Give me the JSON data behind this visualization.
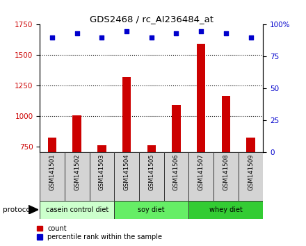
{
  "title": "GDS2468 / rc_AI236484_at",
  "samples": [
    "GSM141501",
    "GSM141502",
    "GSM141503",
    "GSM141504",
    "GSM141505",
    "GSM141506",
    "GSM141507",
    "GSM141508",
    "GSM141509"
  ],
  "counts": [
    820,
    1005,
    758,
    1320,
    758,
    1090,
    1590,
    1165,
    820
  ],
  "percentile_ranks": [
    90,
    93,
    90,
    95,
    90,
    93,
    95,
    93,
    90
  ],
  "ylim_left": [
    700,
    1750
  ],
  "ylim_right": [
    0,
    100
  ],
  "yticks_left": [
    750,
    1000,
    1250,
    1500,
    1750
  ],
  "yticks_right": [
    0,
    25,
    50,
    75,
    100
  ],
  "bar_color": "#cc0000",
  "scatter_color": "#0000cc",
  "groups": [
    {
      "label": "casein control diet",
      "start": 0,
      "end": 3,
      "color": "#ccffcc"
    },
    {
      "label": "soy diet",
      "start": 3,
      "end": 6,
      "color": "#66ee66"
    },
    {
      "label": "whey diet",
      "start": 6,
      "end": 9,
      "color": "#33cc33"
    }
  ],
  "protocol_label": "protocol",
  "legend_count_label": "count",
  "legend_pct_label": "percentile rank within the sample",
  "bg_color": "#ffffff",
  "tick_bg": "#d4d4d4",
  "hgrid_at": [
    1000,
    1250,
    1500
  ]
}
